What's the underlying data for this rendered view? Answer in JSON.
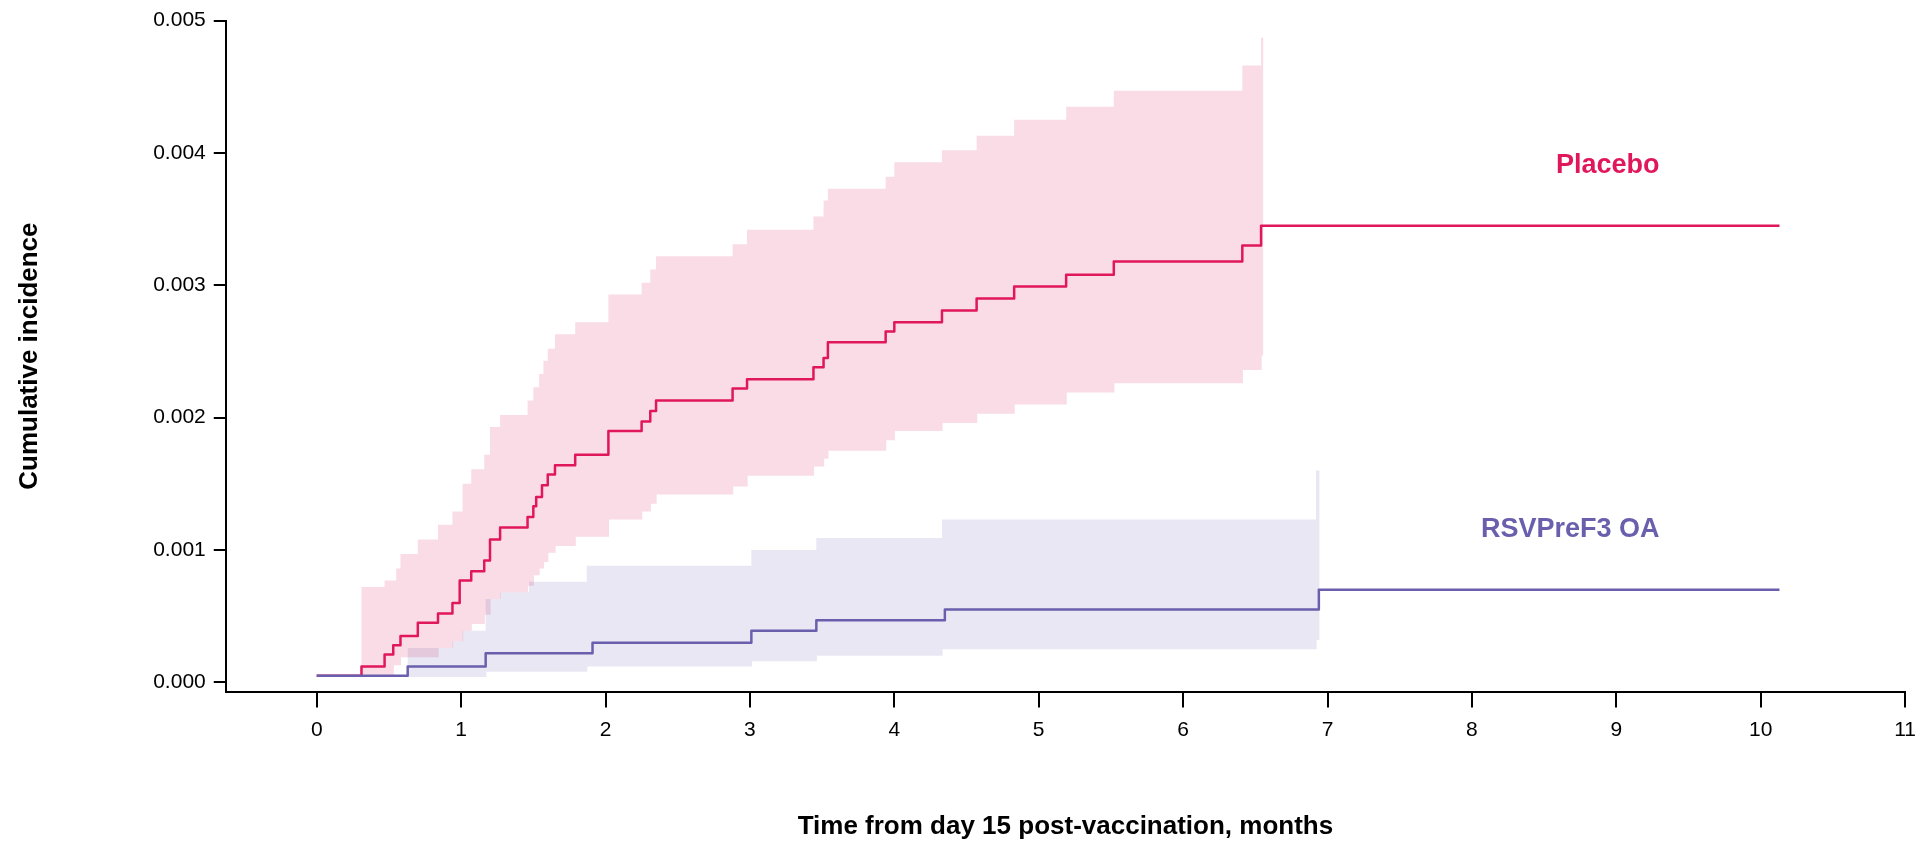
{
  "chart_data": {
    "type": "step",
    "xlabel": "Time from day 15 post-vaccination, months",
    "ylabel": "Cumulative incidence",
    "xlim": [
      -0.63,
      11
    ],
    "xticks": [
      0,
      1,
      2,
      3,
      4,
      5,
      6,
      7,
      8,
      9,
      10,
      11
    ],
    "ylim": [
      -7e-05,
      0.005
    ],
    "yticks": [
      {
        "value": 0,
        "label": "0.000"
      },
      {
        "value": 0.001,
        "label": "0.001"
      },
      {
        "value": 0.002,
        "label": "0.002"
      },
      {
        "value": 0.003,
        "label": "0.003"
      },
      {
        "value": 0.004,
        "label": "0.004"
      },
      {
        "value": 0.005,
        "label": "0.005"
      }
    ],
    "series": [
      {
        "name": "Placebo",
        "color": "#e0175a",
        "x": [
          0,
          0.31,
          0.47,
          0.53,
          0.55,
          0.58,
          0.7,
          0.84,
          0.94,
          0.99,
          1.01,
          1.07,
          1.16,
          1.2,
          1.27,
          1.46,
          1.5,
          1.52,
          1.54,
          1.56,
          1.57,
          1.6,
          1.65,
          1.79,
          2.02,
          2.25,
          2.31,
          2.35,
          2.88,
          2.98,
          3.44,
          3.51,
          3.54,
          3.94,
          4,
          4.33,
          4.57,
          4.83,
          5.19,
          5.52,
          6.41,
          6.54,
          6.55,
          10.13
        ],
        "values": [
          5e-05,
          0.00012,
          0.00021,
          0.00028,
          0.00028,
          0.00035,
          0.00045,
          0.00052,
          0.0006,
          0.00077,
          0.00077,
          0.00084,
          0.00092,
          0.00108,
          0.00117,
          0.00125,
          0.00133,
          0.0014,
          0.0014,
          0.00149,
          0.00149,
          0.00157,
          0.00164,
          0.00172,
          0.0019,
          0.00197,
          0.00205,
          0.00213,
          0.00222,
          0.00229,
          0.00238,
          0.00245,
          0.00257,
          0.00265,
          0.00272,
          0.00281,
          0.0029,
          0.00299,
          0.00308,
          0.00318,
          0.0033,
          0.00345,
          0.00345,
          0.00345
        ],
        "lower": [
          null,
          5e-05,
          5e-05,
          0.00013,
          0.00013,
          0.00019,
          0.00019,
          0.00026,
          0.00031,
          0.00031,
          0.00039,
          0.00044,
          0.00051,
          0.00063,
          0.00068,
          0.00073,
          0.00081,
          0.00081,
          0.00086,
          0.00086,
          0.00091,
          0.00098,
          0.00103,
          0.0011,
          0.00123,
          0.00129,
          0.00135,
          0.00142,
          0.00148,
          0.00156,
          0.00163,
          0.00169,
          0.00175,
          0.00183,
          0.0019,
          0.00196,
          0.00203,
          0.0021,
          0.00219,
          0.00226,
          0.00236,
          0.00247,
          null,
          null
        ],
        "upper": [
          null,
          0.00072,
          0.00077,
          0.00077,
          0.00086,
          0.00097,
          0.00108,
          0.00119,
          0.00129,
          0.00129,
          0.0015,
          0.00161,
          0.00172,
          0.00193,
          0.00202,
          0.00213,
          0.00223,
          0.00223,
          0.00233,
          0.00233,
          0.00243,
          0.00252,
          0.00263,
          0.00272,
          0.00293,
          0.00302,
          0.00312,
          0.00322,
          0.00331,
          0.00342,
          0.00352,
          0.00364,
          0.00373,
          0.00382,
          0.00393,
          0.00402,
          0.00413,
          0.00425,
          0.00435,
          0.00447,
          0.00466,
          0.00487,
          null,
          null
        ]
      },
      {
        "name": "RSVPreF3 OA",
        "color": "#6a5fad",
        "x": [
          0,
          0.63,
          0.94,
          1.01,
          1.17,
          1.27,
          1.47,
          1.87,
          1.91,
          3.01,
          3.46,
          4.33,
          4.35,
          6.92,
          6.94,
          10.13
        ],
        "values": [
          5e-05,
          0.00012,
          0.00012,
          0.00012,
          0.00022,
          0.00022,
          0.00022,
          0.00022,
          0.0003,
          0.00039,
          0.00047,
          0.00047,
          0.00055,
          0.00055,
          0.0007,
          0.0007
        ],
        "lower": [
          null,
          4e-05,
          4e-05,
          4e-05,
          8e-05,
          8e-05,
          8e-05,
          0.00012,
          0.00012,
          0.00016,
          0.0002,
          0.00025,
          0.00025,
          0.00032,
          null,
          null
        ],
        "upper": [
          null,
          0.00026,
          0.00031,
          0.00039,
          0.00063,
          0.00068,
          0.00076,
          0.00088,
          0.00088,
          0.001,
          0.00109,
          0.00123,
          0.00123,
          0.0016,
          null,
          null
        ]
      }
    ]
  }
}
